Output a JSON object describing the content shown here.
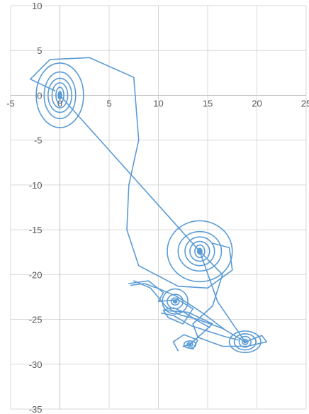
{
  "chart_data": {
    "type": "scatter",
    "title": "",
    "xlabel": "",
    "ylabel": "",
    "xlim": [
      -5,
      25
    ],
    "ylim": [
      -35,
      10
    ],
    "x_ticks": [
      -5,
      0,
      5,
      10,
      15,
      20,
      25
    ],
    "y_ticks": [
      10,
      5,
      0,
      -5,
      -10,
      -15,
      -20,
      -25,
      -30,
      -35
    ],
    "x_tick_labels": [
      "-5",
      "0",
      "5",
      "10",
      "15",
      "20",
      "25"
    ],
    "y_tick_labels": [
      "10",
      "5",
      "0",
      "-5",
      "-10",
      "-15",
      "-20",
      "-25",
      "-30",
      "-35"
    ],
    "grid": true,
    "legend": "none",
    "colors": {
      "series": "#5b9bd5",
      "grid": "#d9d9d9",
      "axis": "#bfbfbf",
      "tick_text": "#595959"
    },
    "series": [
      {
        "style": "line",
        "attractors": [
          {
            "center": [
              0,
              0
            ],
            "rx": [
              0.4,
              0.8,
              1.2,
              1.6,
              2.4
            ],
            "ry": [
              0.9,
              1.4,
              1.9,
              2.6,
              3.6
            ]
          },
          {
            "center": [
              14.2,
              -17.4
            ],
            "rx": [
              0.5,
              1,
              1.5,
              2.2,
              3.3
            ],
            "ry": [
              0.7,
              1.1,
              1.6,
              2.2,
              3.4
            ]
          },
          {
            "center": [
              18.8,
              -27.5
            ],
            "rx": [
              0.3,
              0.6,
              1.1,
              1.6
            ],
            "ry": [
              0.3,
              0.6,
              0.9,
              1.2
            ]
          },
          {
            "center": [
              11.7,
              -23
            ],
            "rx": [
              0.4,
              0.8,
              1.3
            ],
            "ry": [
              0.4,
              0.8,
              1.4
            ]
          },
          {
            "center": [
              13.2,
              -27.8
            ],
            "rx": [
              0.3,
              0.6
            ],
            "ry": [
              0.2,
              0.4
            ]
          }
        ],
        "paths": [
          [
            [
              0,
              0
            ],
            [
              14.2,
              -17.4
            ]
          ],
          [
            [
              -0.5,
              0.5
            ],
            [
              -3,
              1.8
            ],
            [
              -1,
              4
            ],
            [
              3,
              4.2
            ],
            [
              7.5,
              2
            ],
            [
              8,
              -5
            ],
            [
              7,
              -10
            ],
            [
              6.8,
              -15
            ],
            [
              8,
              -19
            ],
            [
              12,
              -21.3
            ],
            [
              15,
              -21.5
            ],
            [
              17.5,
              -19.5
            ],
            [
              17.2,
              -17
            ],
            [
              15.5,
              -16.5
            ]
          ],
          [
            [
              14.2,
              -17.4
            ],
            [
              16.5,
              -20
            ],
            [
              15.5,
              -23.5
            ],
            [
              13.5,
              -25.5
            ],
            [
              14,
              -27
            ],
            [
              16.5,
              -28
            ],
            [
              19,
              -28
            ],
            [
              21,
              -27.5
            ],
            [
              20.5,
              -26.8
            ],
            [
              18.8,
              -27.5
            ]
          ],
          [
            [
              14.2,
              -17.4
            ],
            [
              16,
              -23
            ],
            [
              18.8,
              -27.5
            ]
          ],
          [
            [
              7,
              -21
            ],
            [
              9,
              -20.7
            ],
            [
              10.5,
              -22
            ],
            [
              10,
              -23
            ],
            [
              12,
              -22.8
            ],
            [
              13.5,
              -23.8
            ],
            [
              12.5,
              -25.5
            ],
            [
              11,
              -24.8
            ],
            [
              10.5,
              -24
            ],
            [
              13,
              -24.2
            ],
            [
              15.5,
              -25.5
            ],
            [
              14.5,
              -26.5
            ],
            [
              13.2,
              -27.8
            ],
            [
              12.5,
              -28
            ],
            [
              13.5,
              -28.3
            ],
            [
              14,
              -27.3
            ],
            [
              12.6,
              -26.7
            ],
            [
              11.5,
              -27.5
            ],
            [
              12,
              -28.5
            ]
          ],
          [
            [
              7.5,
              -20.7
            ],
            [
              9.2,
              -21.5
            ],
            [
              10.8,
              -23.6
            ],
            [
              12.2,
              -24.5
            ],
            [
              14,
              -25
            ],
            [
              16.5,
              -26
            ],
            [
              18.8,
              -27.5
            ]
          ],
          [
            [
              10.3,
              -24.3
            ],
            [
              11.6,
              -24.6
            ],
            [
              13.3,
              -25.7
            ],
            [
              15,
              -26.3
            ],
            [
              16.7,
              -26.9
            ],
            [
              18.1,
              -27.3
            ]
          ],
          [
            [
              7.2,
              -21.2
            ],
            [
              8.6,
              -21
            ],
            [
              10.3,
              -21.7
            ],
            [
              11.8,
              -22.4
            ],
            [
              13,
              -23.2
            ]
          ],
          [
            [
              10.6,
              -23.9
            ],
            [
              11.5,
              -23.7
            ],
            [
              12.6,
              -24.2
            ],
            [
              13.9,
              -25.1
            ],
            [
              15.2,
              -25.9
            ]
          ],
          [
            [
              13,
              -23.2
            ],
            [
              14.5,
              -24.3
            ],
            [
              15.6,
              -25.2
            ],
            [
              16.8,
              -26.2
            ]
          ]
        ]
      }
    ]
  }
}
